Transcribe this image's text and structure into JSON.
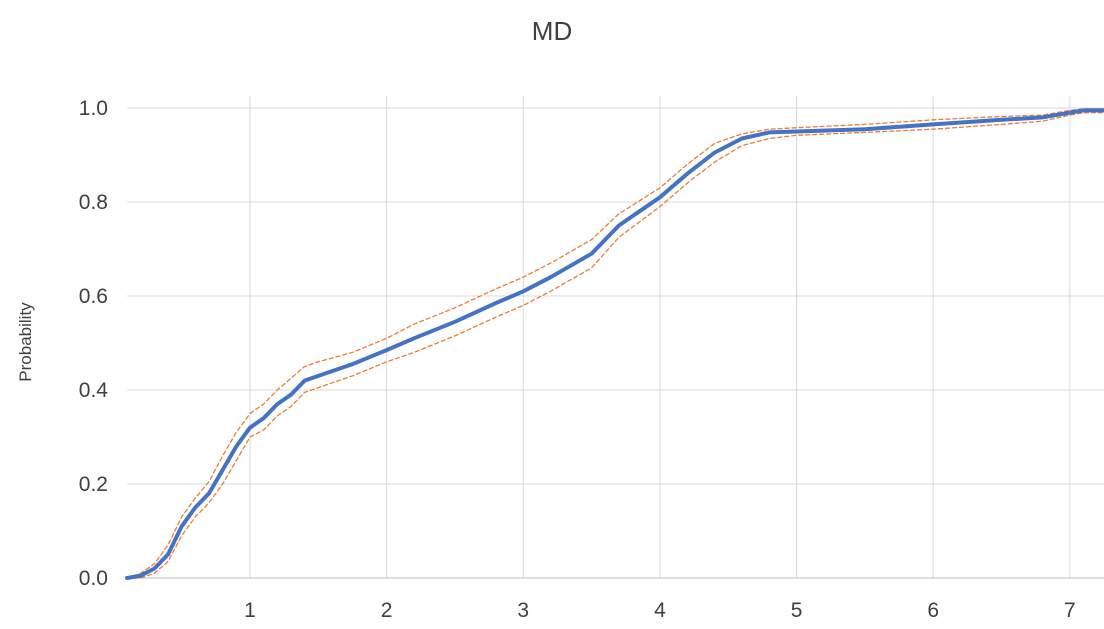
{
  "chart_data": {
    "type": "line",
    "title": "MD",
    "xlabel": "",
    "ylabel": "Probability",
    "xlim": [
      0.1,
      7.25
    ],
    "ylim": [
      0.0,
      1.0
    ],
    "x_ticks": [
      1,
      2,
      3,
      4,
      5,
      6,
      7
    ],
    "y_ticks": [
      0.0,
      0.2,
      0.4,
      0.6,
      0.8,
      1.0
    ],
    "y_tick_labels": [
      "0.0",
      "0.2",
      "0.4",
      "0.6",
      "0.8",
      "1.0"
    ],
    "grid": true,
    "series": [
      {
        "role": "estimate",
        "color": "#4472c4",
        "style": "solid",
        "x": [
          0.1,
          0.2,
          0.3,
          0.4,
          0.5,
          0.6,
          0.7,
          0.8,
          0.9,
          1.0,
          1.1,
          1.2,
          1.3,
          1.4,
          1.5,
          1.75,
          2.0,
          2.2,
          2.5,
          2.8,
          3.0,
          3.2,
          3.5,
          3.7,
          4.0,
          4.2,
          4.4,
          4.6,
          4.8,
          5.0,
          5.5,
          6.0,
          6.5,
          6.8,
          7.0,
          7.1,
          7.25
        ],
        "y": [
          0.0,
          0.005,
          0.02,
          0.05,
          0.11,
          0.15,
          0.18,
          0.23,
          0.28,
          0.32,
          0.34,
          0.37,
          0.39,
          0.42,
          0.43,
          0.455,
          0.485,
          0.51,
          0.545,
          0.585,
          0.61,
          0.64,
          0.69,
          0.75,
          0.81,
          0.86,
          0.905,
          0.935,
          0.948,
          0.95,
          0.955,
          0.965,
          0.975,
          0.98,
          0.99,
          0.995,
          0.995
        ]
      },
      {
        "role": "upper confidence bound",
        "color": "#ed7d31",
        "style": "dashed",
        "x": [
          0.1,
          0.2,
          0.3,
          0.4,
          0.5,
          0.6,
          0.7,
          0.8,
          0.9,
          1.0,
          1.1,
          1.2,
          1.3,
          1.4,
          1.5,
          1.75,
          2.0,
          2.2,
          2.5,
          2.8,
          3.0,
          3.2,
          3.5,
          3.7,
          4.0,
          4.2,
          4.4,
          4.6,
          4.8,
          5.0,
          5.5,
          6.0,
          6.5,
          6.8,
          7.0,
          7.1,
          7.25
        ],
        "y": [
          0.0,
          0.01,
          0.03,
          0.07,
          0.13,
          0.17,
          0.205,
          0.26,
          0.31,
          0.35,
          0.37,
          0.4,
          0.425,
          0.45,
          0.46,
          0.48,
          0.51,
          0.54,
          0.575,
          0.615,
          0.64,
          0.67,
          0.72,
          0.775,
          0.83,
          0.88,
          0.925,
          0.945,
          0.955,
          0.958,
          0.965,
          0.975,
          0.982,
          0.985,
          0.995,
          0.998,
          0.998
        ]
      },
      {
        "role": "lower confidence bound",
        "color": "#ed7d31",
        "style": "dashed",
        "x": [
          0.1,
          0.2,
          0.3,
          0.4,
          0.5,
          0.6,
          0.7,
          0.8,
          0.9,
          1.0,
          1.1,
          1.2,
          1.3,
          1.4,
          1.5,
          1.75,
          2.0,
          2.2,
          2.5,
          2.8,
          3.0,
          3.2,
          3.5,
          3.7,
          4.0,
          4.2,
          4.4,
          4.6,
          4.8,
          5.0,
          5.5,
          6.0,
          6.5,
          6.8,
          7.0,
          7.1,
          7.25
        ],
        "y": [
          0.0,
          0.0,
          0.01,
          0.035,
          0.09,
          0.13,
          0.16,
          0.2,
          0.25,
          0.3,
          0.315,
          0.345,
          0.365,
          0.395,
          0.405,
          0.43,
          0.46,
          0.48,
          0.515,
          0.555,
          0.58,
          0.61,
          0.66,
          0.725,
          0.79,
          0.84,
          0.885,
          0.92,
          0.935,
          0.942,
          0.948,
          0.955,
          0.965,
          0.972,
          0.985,
          0.99,
          0.99
        ]
      }
    ]
  }
}
